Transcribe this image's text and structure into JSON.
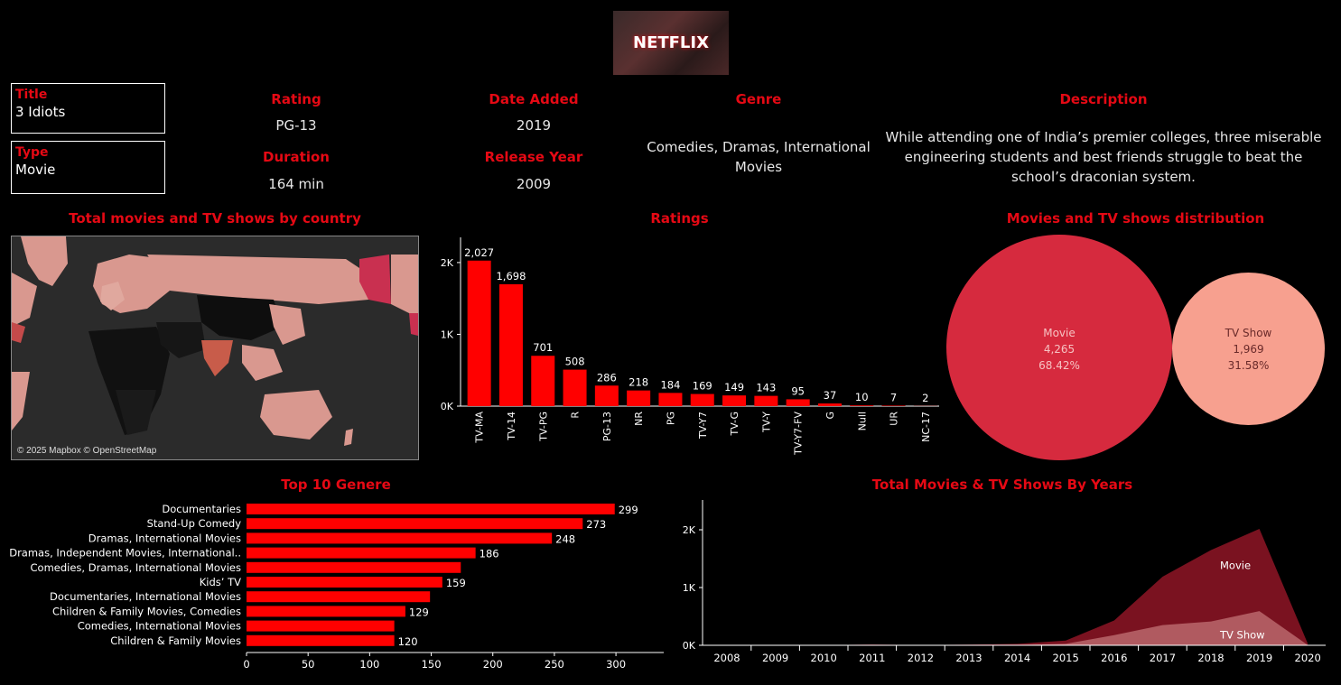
{
  "logo": {
    "text": "NETFLIX"
  },
  "details": {
    "title_label": "Title",
    "title_value": "3 Idiots",
    "type_label": "Type",
    "type_value": "Movie",
    "rating_label": "Rating",
    "rating_value": "PG-13",
    "duration_label": "Duration",
    "duration_value": "164 min",
    "date_added_label": "Date Added",
    "date_added_value": "2019",
    "release_year_label": "Release Year",
    "release_year_value": "2009",
    "genre_label": "Genre",
    "genre_value": "Comedies, Dramas, International Movies",
    "description_label": "Description",
    "description_value": "While attending one of India’s premier colleges, three miserable engineering students and best friends struggle to beat the school’s draconian system."
  },
  "map": {
    "title": "Total movies and TV shows by country",
    "attribution": "© 2025 Mapbox © OpenStreetMap"
  },
  "colors": {
    "accent": "#e50914",
    "bar": "#ff0000",
    "movie": "#d62a3e",
    "tvshow": "#f7a08f",
    "area_movie": "#7a1220",
    "area_tv": "#b05a60"
  },
  "chart_data": [
    {
      "type": "bar",
      "title": "Ratings",
      "categories": [
        "TV-MA",
        "TV-14",
        "TV-PG",
        "R",
        "PG-13",
        "NR",
        "PG",
        "TV-Y7",
        "TV-G",
        "TV-Y",
        "TV-Y7-FV",
        "G",
        "Null",
        "UR",
        "NC-17"
      ],
      "values": [
        2027,
        1698,
        701,
        508,
        286,
        218,
        184,
        169,
        149,
        143,
        95,
        37,
        10,
        7,
        2
      ],
      "value_labels": [
        "2,027",
        "1,698",
        "701",
        "508",
        "286",
        "218",
        "184",
        "169",
        "149",
        "143",
        "95",
        "37",
        "10",
        "7",
        "2"
      ],
      "yticks": [
        0,
        1000,
        2000
      ],
      "ytick_labels": [
        "0K",
        "1K",
        "2K"
      ],
      "ylim": [
        0,
        2200
      ]
    },
    {
      "type": "bubble",
      "title": "Movies and TV shows distribution",
      "series": [
        {
          "name": "Movie",
          "value": 4265,
          "value_label": "4,265",
          "percent": "68.42%"
        },
        {
          "name": "TV Show",
          "value": 1969,
          "value_label": "1,969",
          "percent": "31.58%"
        }
      ]
    },
    {
      "type": "bar",
      "orientation": "horizontal",
      "title": "Top 10 Genere",
      "categories": [
        "Documentaries",
        "Stand-Up Comedy",
        "Dramas, International Movies",
        "Dramas, Independent Movies, International..",
        "Comedies, Dramas, International Movies",
        "Kids’ TV",
        "Documentaries, International Movies",
        "Children & Family Movies, Comedies",
        "Comedies, International Movies",
        "Children & Family Movies"
      ],
      "values": [
        299,
        273,
        248,
        186,
        174,
        159,
        149,
        129,
        120,
        120
      ],
      "value_labels": [
        "299",
        "273",
        "248",
        "186",
        "",
        "159",
        "",
        "129",
        "",
        "120"
      ],
      "xticks": [
        0,
        50,
        100,
        150,
        200,
        250,
        300
      ],
      "xlim": [
        0,
        330
      ]
    },
    {
      "type": "area",
      "title": "Total Movies & TV Shows By Years",
      "x": [
        "2008",
        "2009",
        "2010",
        "2011",
        "2012",
        "2013",
        "2014",
        "2015",
        "2016",
        "2017",
        "2018",
        "2019",
        "2020"
      ],
      "series": [
        {
          "name": "Movie",
          "values": [
            1,
            2,
            1,
            13,
            3,
            6,
            19,
            56,
            253,
            839,
            1237,
            1424,
            25
          ]
        },
        {
          "name": "TV Show",
          "values": [
            1,
            0,
            0,
            0,
            0,
            5,
            6,
            26,
            176,
            349,
            412,
            592,
            4
          ]
        }
      ],
      "yticks": [
        0,
        1000,
        2000
      ],
      "ytick_labels": [
        "0K",
        "1K",
        "2K"
      ],
      "ylim": [
        0,
        2500
      ]
    }
  ]
}
